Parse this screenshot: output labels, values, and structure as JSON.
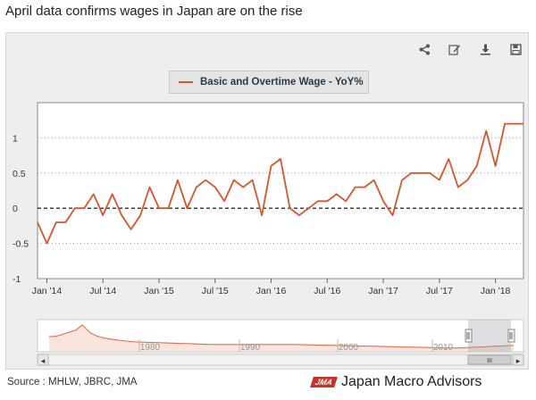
{
  "page": {
    "title": "April data confirms wages in Japan are on the rise"
  },
  "toolbar": {
    "icons": [
      "share-icon",
      "edit-icon",
      "download-icon",
      "save-icon"
    ]
  },
  "footer": {
    "source": "Source : MHLW, JBRC, JMA",
    "logo_mark": "JMA",
    "logo_text": "Japan Macro Advisors"
  },
  "colors": {
    "series": "#d9542b",
    "grid": "#9a9a9a",
    "zero_line": "#000000",
    "plot_bg": "#ffffff",
    "panel_bg": "#eeeeee"
  },
  "chart_data": {
    "type": "line",
    "title": "",
    "legend": {
      "placement": "top-center"
    },
    "xlabel": "",
    "ylabel": "",
    "ylim": [
      -1,
      1.5
    ],
    "yticks": [
      -1,
      -0.5,
      0,
      0.5,
      1
    ],
    "ytick_labels": [
      "-1",
      "-0.5",
      "0",
      "0.5",
      "1"
    ],
    "xticks": [
      "2014-01",
      "2014-07",
      "2015-01",
      "2015-07",
      "2016-01",
      "2016-07",
      "2017-01",
      "2017-07",
      "2018-01"
    ],
    "xtick_labels": [
      "Jan '14",
      "Jul '14",
      "Jan '15",
      "Jul '15",
      "Jan '16",
      "Jul '16",
      "Jan '17",
      "Jul '17",
      "Jan '18"
    ],
    "grid": true,
    "zero_line": "dashed",
    "series": [
      {
        "name": "Basic and Overtime Wage - YoY%",
        "x": [
          "2013-12",
          "2014-01",
          "2014-02",
          "2014-03",
          "2014-04",
          "2014-05",
          "2014-06",
          "2014-07",
          "2014-08",
          "2014-09",
          "2014-10",
          "2014-11",
          "2014-12",
          "2015-01",
          "2015-02",
          "2015-03",
          "2015-04",
          "2015-05",
          "2015-06",
          "2015-07",
          "2015-08",
          "2015-09",
          "2015-10",
          "2015-11",
          "2015-12",
          "2016-01",
          "2016-02",
          "2016-03",
          "2016-04",
          "2016-05",
          "2016-06",
          "2016-07",
          "2016-08",
          "2016-09",
          "2016-10",
          "2016-11",
          "2016-12",
          "2017-01",
          "2017-02",
          "2017-03",
          "2017-04",
          "2017-05",
          "2017-06",
          "2017-07",
          "2017-08",
          "2017-09",
          "2017-10",
          "2017-11",
          "2017-12",
          "2018-01",
          "2018-02",
          "2018-03",
          "2018-04"
        ],
        "values": [
          -0.2,
          -0.5,
          -0.2,
          -0.2,
          0.0,
          0.0,
          0.2,
          -0.1,
          0.2,
          -0.1,
          -0.3,
          -0.1,
          0.3,
          0.0,
          0.0,
          0.4,
          0.0,
          0.3,
          0.4,
          0.3,
          0.1,
          0.4,
          0.3,
          0.4,
          -0.1,
          0.6,
          0.7,
          0.0,
          -0.1,
          0.0,
          0.1,
          0.1,
          0.2,
          0.1,
          0.3,
          0.3,
          0.4,
          0.1,
          -0.1,
          0.4,
          0.5,
          0.5,
          0.5,
          0.4,
          0.7,
          0.3,
          0.4,
          0.6,
          1.1,
          0.6,
          1.2,
          1.2,
          1.2
        ]
      }
    ]
  },
  "navigator": {
    "tick_labels": [
      "1980",
      "1990",
      "2000",
      "2010"
    ],
    "scroll_left": "◂",
    "scroll_right": "▸",
    "scroll_grip": "III"
  }
}
